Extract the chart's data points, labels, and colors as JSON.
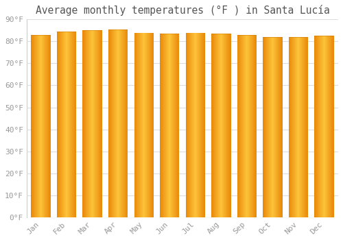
{
  "title": "Average monthly temperatures (°F ) in Santa Lucía",
  "months": [
    "Jan",
    "Feb",
    "Mar",
    "Apr",
    "May",
    "Jun",
    "Jul",
    "Aug",
    "Sep",
    "Oct",
    "Nov",
    "Dec"
  ],
  "values": [
    83,
    84.5,
    85,
    85.5,
    84,
    83.5,
    84,
    83.5,
    83,
    82,
    82,
    82.5
  ],
  "bar_color_left": "#E8890A",
  "bar_color_mid": "#FDC43A",
  "bar_color_right": "#E8890A",
  "background_color": "#ffffff",
  "plot_bg_color": "#ffffff",
  "ylim": [
    0,
    90
  ],
  "yticks": [
    0,
    10,
    20,
    30,
    40,
    50,
    60,
    70,
    80,
    90
  ],
  "grid_color": "#dddddd",
  "tick_label_color": "#999999",
  "title_color": "#555555",
  "title_fontsize": 10.5,
  "tick_fontsize": 8
}
